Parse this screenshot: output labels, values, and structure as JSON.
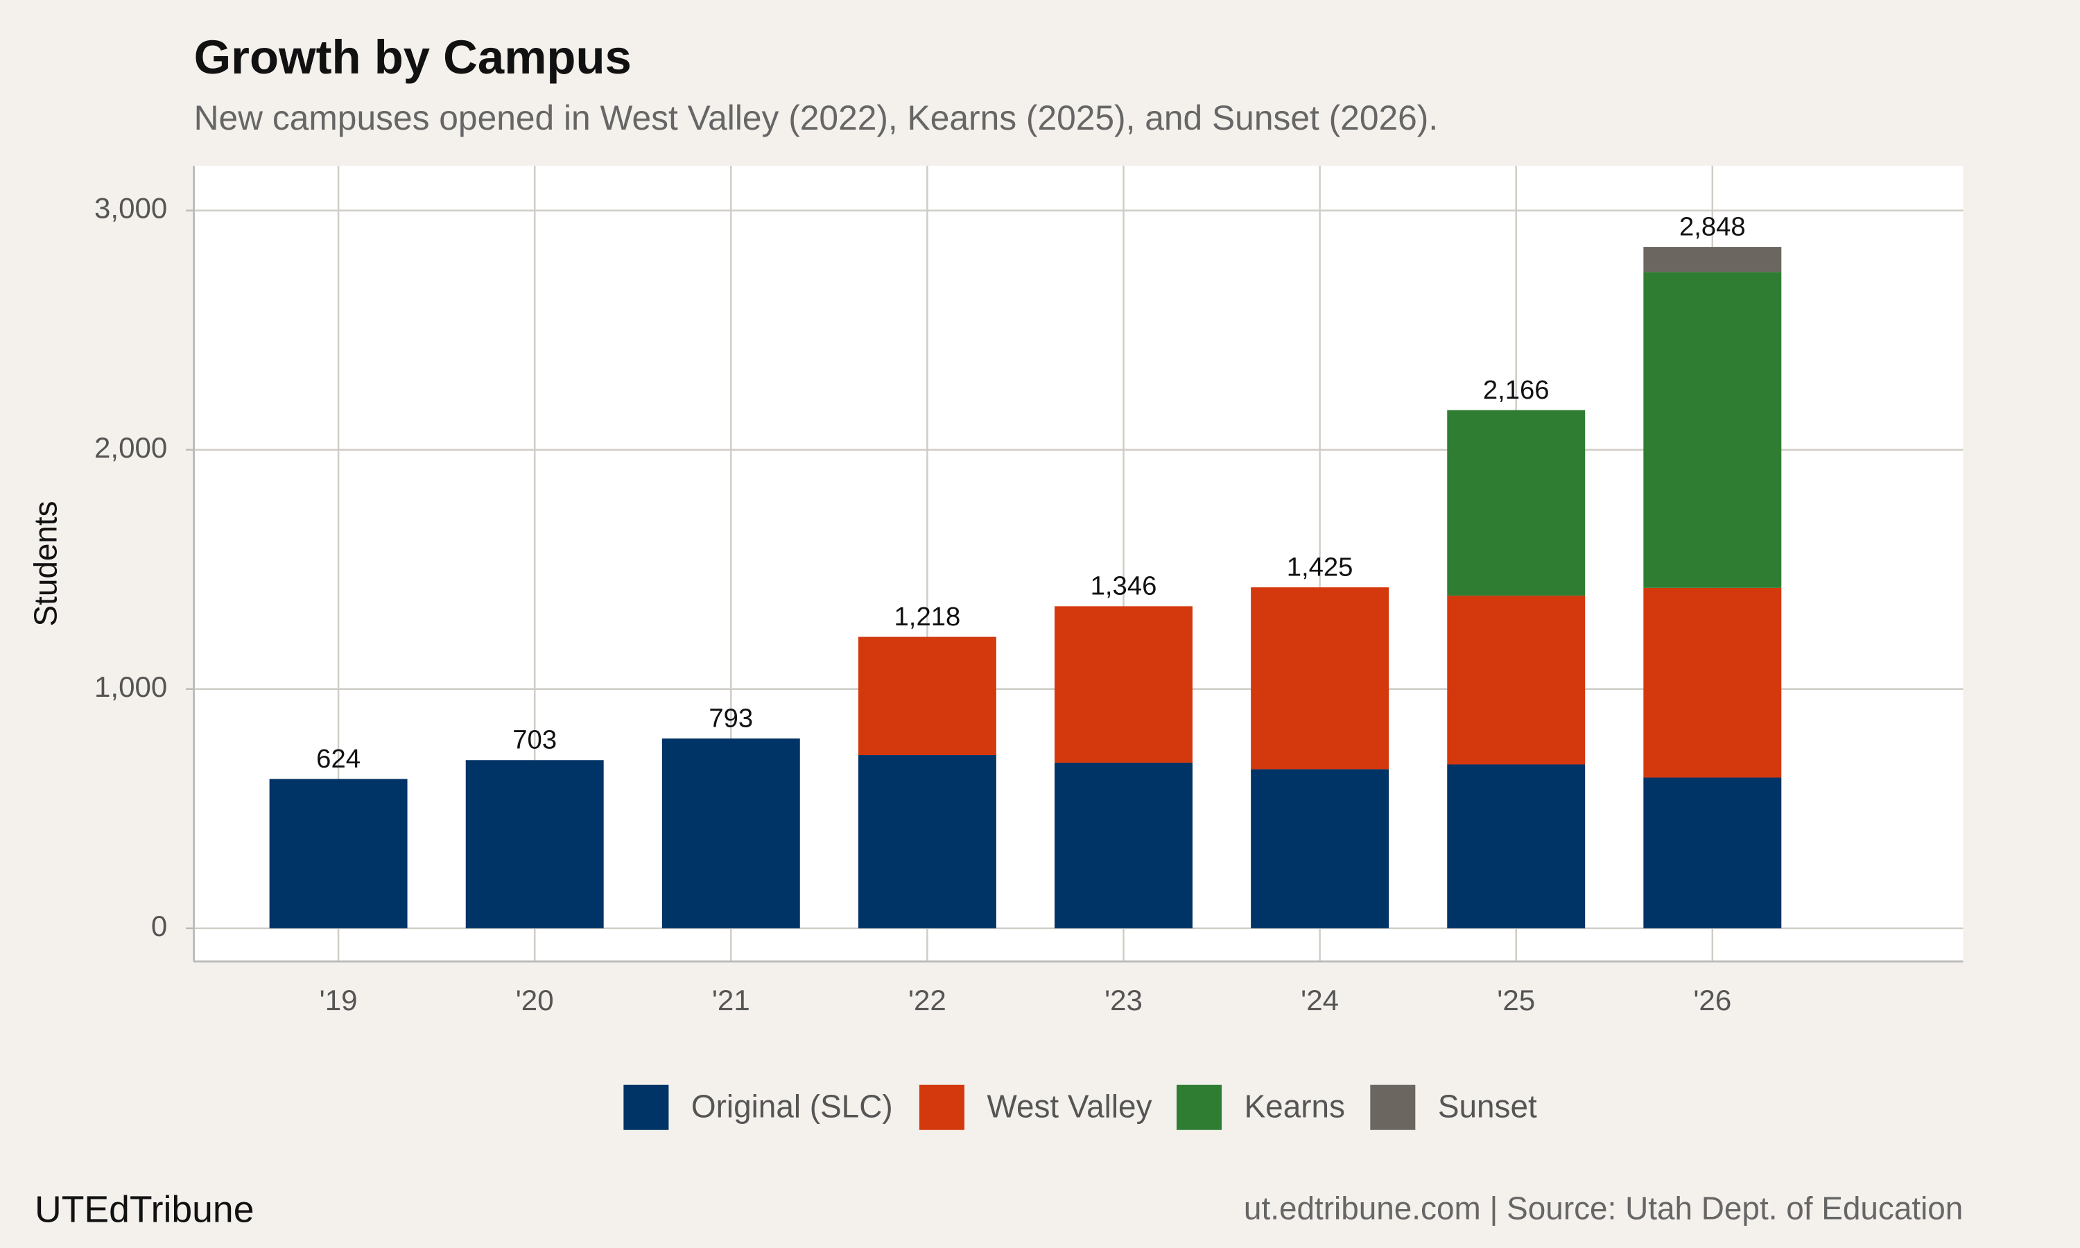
{
  "chart_data": {
    "type": "stacked_bar",
    "title": "Growth by Campus",
    "subtitle": "New campuses opened in West Valley (2022), Kearns (2025), and Sunset (2026).",
    "y_label": "Students",
    "categories": [
      "'19",
      "'20",
      "'21",
      "'22",
      "'23",
      "'24",
      "'25",
      "'26"
    ],
    "series": [
      {
        "name": "Original (SLC)",
        "color": "#003366",
        "values": [
          624,
          703,
          793,
          724,
          692,
          665,
          685,
          630
        ]
      },
      {
        "name": "West Valley",
        "color": "#d4380d",
        "values": [
          null,
          null,
          null,
          494,
          654,
          760,
          705,
          793
        ]
      },
      {
        "name": "Kearns",
        "color": "#2e7d32",
        "values": [
          null,
          null,
          null,
          null,
          null,
          null,
          776,
          1320
        ]
      },
      {
        "name": "Sunset",
        "color": "#6b6660",
        "values": [
          null,
          null,
          null,
          null,
          null,
          null,
          null,
          105
        ]
      }
    ],
    "totals": [
      624,
      703,
      793,
      1218,
      1346,
      1425,
      2166,
      2848
    ],
    "value_labels": [
      "624",
      "703",
      "793",
      "1,218",
      "1,346",
      "1,425",
      "2,166",
      "2,848"
    ],
    "ylim": [
      -139,
      3187
    ],
    "yticks": [
      0,
      {
        "value": 1000,
        "label": "1,000"
      },
      {
        "value": 2000,
        "label": "2,000"
      },
      {
        "value": 3000,
        "label": "3,000"
      }
    ],
    "grid": true,
    "legend": "bottom",
    "brand": "UTEdTribune",
    "source": "ut.edtribune.com | Source: Utah Dept. of Education"
  }
}
